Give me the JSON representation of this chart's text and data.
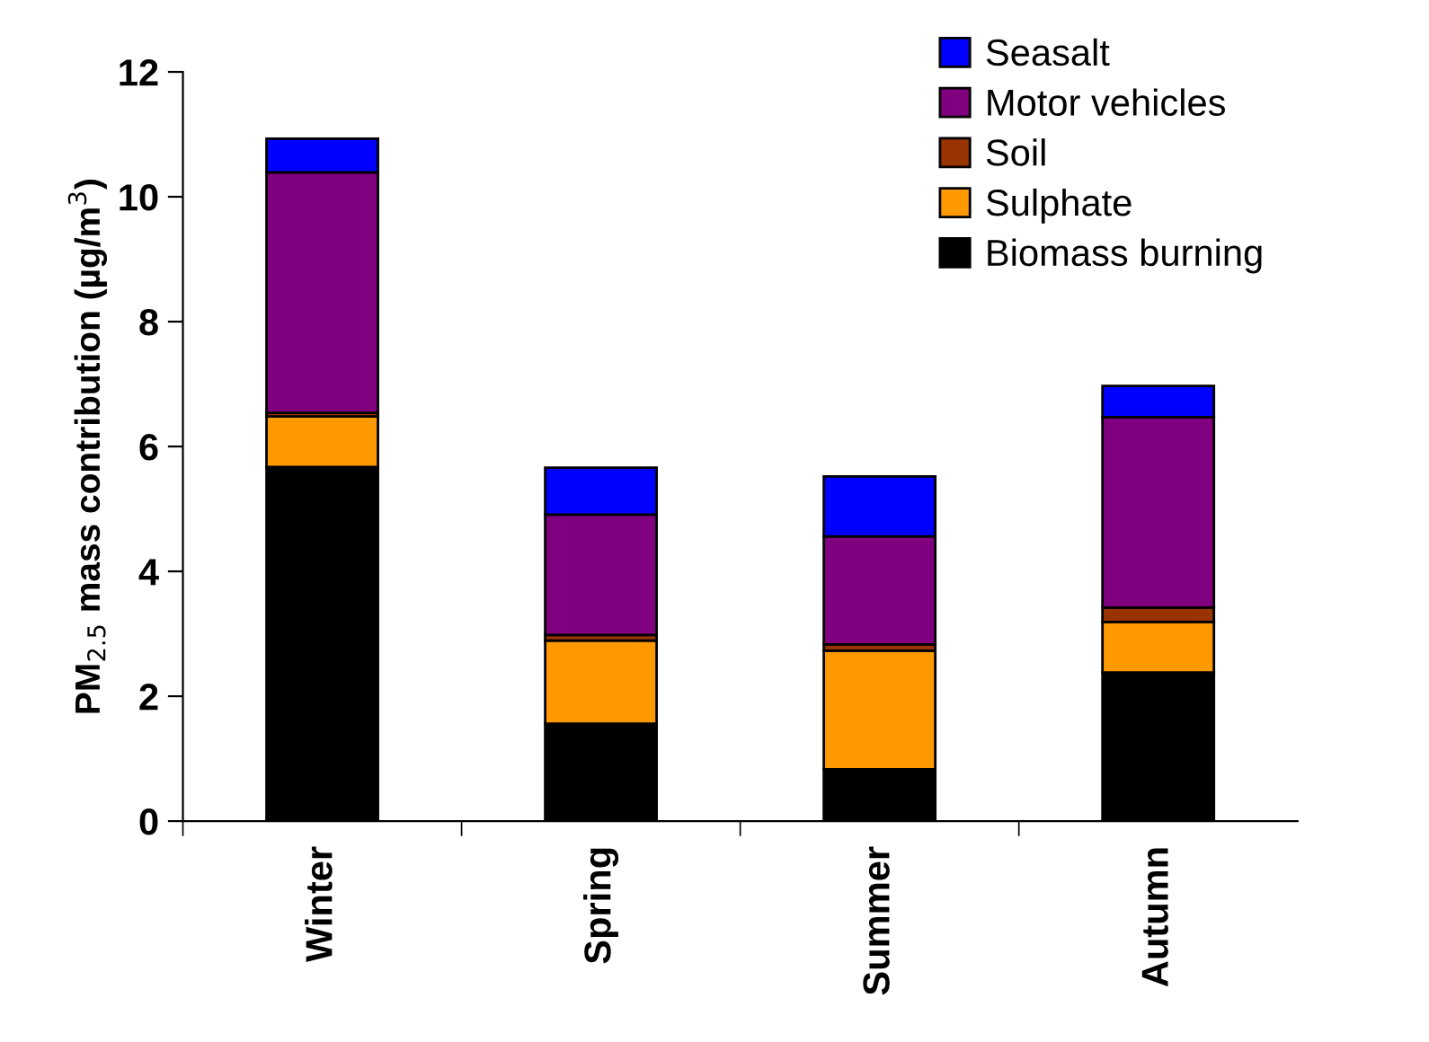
{
  "chart_data": {
    "type": "bar",
    "stacked": true,
    "ylabel": "PM$_{2.5}$ mass contribution (µg/m$^{3}$)",
    "categories": [
      "Winter",
      "Spring",
      "Summer",
      "Autumn"
    ],
    "series": [
      {
        "name": "Biomass burning",
        "color": "#000000",
        "values": [
          5.67,
          1.56,
          0.83,
          2.38
        ]
      },
      {
        "name": "Sulphate",
        "color": "#ff9900",
        "values": [
          0.81,
          1.33,
          1.9,
          0.81
        ]
      },
      {
        "name": "Soil",
        "color": "#993300",
        "values": [
          0.06,
          0.09,
          0.1,
          0.23
        ]
      },
      {
        "name": "Motor vehicles",
        "color": "#800080",
        "values": [
          3.85,
          1.93,
          1.73,
          3.05
        ]
      },
      {
        "name": "Seasalt",
        "color": "#0000ff",
        "values": [
          0.54,
          0.75,
          0.96,
          0.5
        ]
      }
    ],
    "ylim": [
      0,
      12
    ],
    "yticks": [
      0,
      2,
      4,
      6,
      8,
      10,
      12
    ],
    "grid": false,
    "legend": "top right"
  }
}
